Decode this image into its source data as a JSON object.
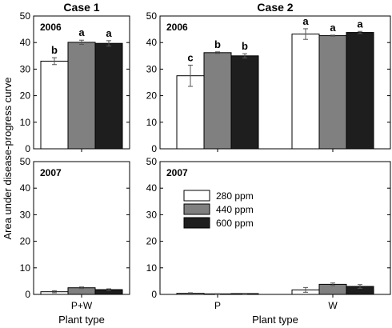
{
  "chart_data": [
    {
      "type": "bar",
      "title": "Case 1",
      "panel_label": "2006",
      "xlabel": "Plant type",
      "ylabel": "Area under disease-progress curve",
      "ylim": [
        0,
        50
      ],
      "yticks": [
        0,
        10,
        20,
        30,
        40,
        50
      ],
      "categories": [
        "P+W"
      ],
      "series": [
        {
          "name": "280 ppm",
          "values": [
            33.0
          ],
          "errors": [
            1.3
          ],
          "labels": [
            "b"
          ]
        },
        {
          "name": "440 ppm",
          "values": [
            40.1
          ],
          "errors": [
            0.8
          ],
          "labels": [
            "a"
          ]
        },
        {
          "name": "600 ppm",
          "values": [
            39.7
          ],
          "errors": [
            1.0
          ],
          "labels": [
            "a"
          ]
        }
      ]
    },
    {
      "type": "bar",
      "title": "Case 2",
      "panel_label": "2006",
      "xlabel": "Plant type",
      "ylim": [
        0,
        50
      ],
      "yticks": [
        0,
        10,
        20,
        30,
        40,
        50
      ],
      "categories": [
        "P",
        "W"
      ],
      "series": [
        {
          "name": "280 ppm",
          "values": [
            27.5,
            43.2
          ],
          "errors": [
            4.0,
            2.0
          ],
          "labels": [
            "c",
            "a"
          ]
        },
        {
          "name": "440 ppm",
          "values": [
            36.2,
            42.6
          ],
          "errors": [
            0.3,
            0.2
          ],
          "labels": [
            "b",
            "a"
          ]
        },
        {
          "name": "600 ppm",
          "values": [
            35.0,
            43.8
          ],
          "errors": [
            0.8,
            0.4
          ],
          "labels": [
            "b",
            "a"
          ]
        }
      ]
    },
    {
      "type": "bar",
      "panel_label": "2007",
      "xlabel": "Plant type",
      "ylim": [
        0,
        50
      ],
      "yticks": [
        0,
        10,
        20,
        30,
        40,
        50
      ],
      "categories": [
        "P+W"
      ],
      "series": [
        {
          "name": "280 ppm",
          "values": [
            1.0
          ],
          "errors": [
            0.4
          ]
        },
        {
          "name": "440 ppm",
          "values": [
            2.5
          ],
          "errors": [
            0.3
          ]
        },
        {
          "name": "600 ppm",
          "values": [
            1.8
          ],
          "errors": [
            0.3
          ]
        }
      ]
    },
    {
      "type": "bar",
      "panel_label": "2007",
      "xlabel": "Plant type",
      "ylim": [
        0,
        50
      ],
      "yticks": [
        0,
        10,
        20,
        30,
        40,
        50
      ],
      "categories": [
        "P",
        "W"
      ],
      "series": [
        {
          "name": "280 ppm",
          "values": [
            0.4,
            1.7
          ],
          "errors": [
            0.2,
            0.9
          ]
        },
        {
          "name": "440 ppm",
          "values": [
            0.2,
            3.8
          ],
          "errors": [
            0.1,
            0.5
          ]
        },
        {
          "name": "600 ppm",
          "values": [
            0.3,
            3.0
          ],
          "errors": [
            0.1,
            0.7
          ]
        }
      ],
      "legend": {
        "placement": "top-left",
        "entries": [
          "280 ppm",
          "440 ppm",
          "600 ppm"
        ]
      }
    }
  ],
  "colors": {
    "280 ppm": "#ffffff",
    "440 ppm": "#808080",
    "600 ppm": "#1e1e1e"
  },
  "labels": {
    "case1_title": "Case 1",
    "case2_title": "Case 2",
    "ylabel": "Area under disease-progress curve",
    "xlabel_left": "Plant type",
    "xlabel_right": "Plant type"
  }
}
